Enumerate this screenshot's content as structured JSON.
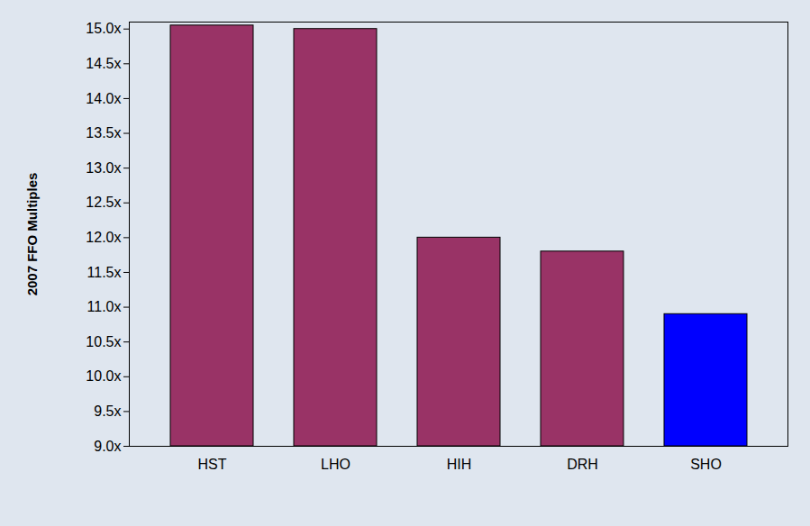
{
  "chart_data": {
    "type": "bar",
    "y_label": "2007 FFO Multiples",
    "categories": [
      "HST",
      "LHO",
      "HIH",
      "DRH",
      "SHO"
    ],
    "values": [
      15.05,
      15.0,
      12.0,
      11.8,
      10.9
    ],
    "colors": [
      "#993366",
      "#993366",
      "#993366",
      "#993366",
      "#0000ff"
    ],
    "ylim": [
      9.0,
      15.1
    ],
    "yticks": [
      {
        "value": 9.0,
        "label": "9.0x"
      },
      {
        "value": 9.5,
        "label": "9.5x"
      },
      {
        "value": 10.0,
        "label": "10.0x"
      },
      {
        "value": 10.5,
        "label": "10.5x"
      },
      {
        "value": 11.0,
        "label": "11.0x"
      },
      {
        "value": 11.5,
        "label": "11.5x"
      },
      {
        "value": 12.0,
        "label": "12.0x"
      },
      {
        "value": 12.5,
        "label": "12.5x"
      },
      {
        "value": 13.0,
        "label": "13.0x"
      },
      {
        "value": 13.5,
        "label": "13.5x"
      },
      {
        "value": 14.0,
        "label": "14.0x"
      },
      {
        "value": 14.5,
        "label": "14.5x"
      },
      {
        "value": 15.0,
        "label": "15.0x"
      }
    ],
    "grid": false
  }
}
